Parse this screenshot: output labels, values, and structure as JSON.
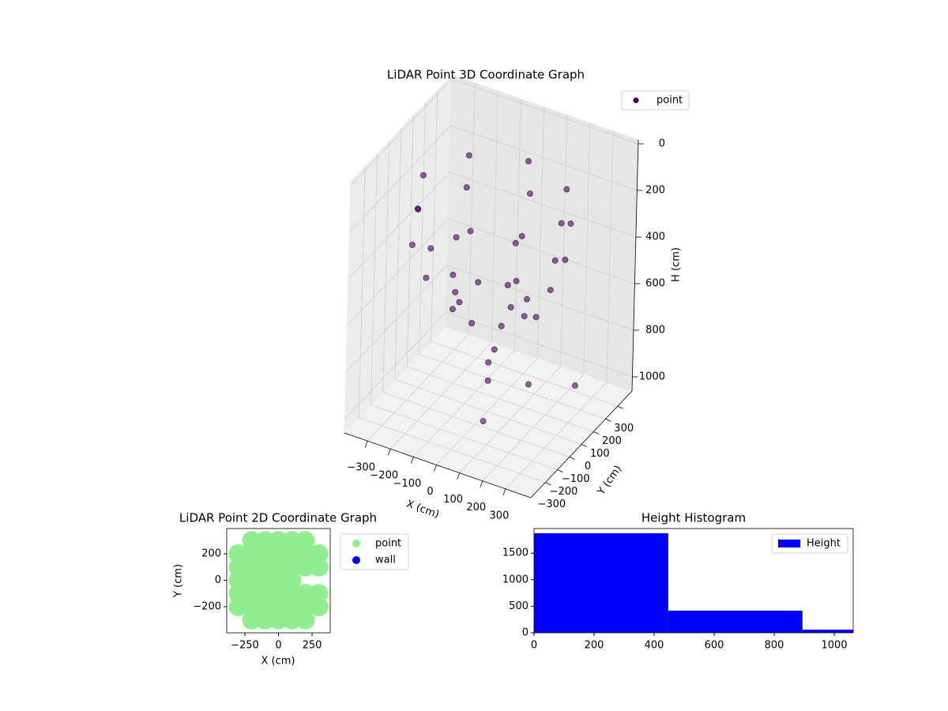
{
  "chart_data": [
    {
      "type": "scatter3d",
      "title": "LiDAR Point 3D Coordinate Graph",
      "xlabel": "X (cm)",
      "ylabel": "Y (cm)",
      "zlabel": "H (cm)",
      "xlim": [
        -400,
        410
      ],
      "ylim": [
        -420,
        420
      ],
      "zlim": [
        -17,
        1061
      ],
      "z_inverted": true,
      "xticks": [
        {
          "value": -300,
          "label": "−300"
        },
        {
          "value": -200,
          "label": "−200"
        },
        {
          "value": -100,
          "label": "−100"
        },
        0,
        100,
        200,
        300
      ],
      "yticks": [
        {
          "value": -300,
          "label": "−300"
        },
        {
          "value": -200,
          "label": "−200"
        },
        {
          "value": -100,
          "label": "−100"
        },
        0,
        100,
        200,
        300
      ],
      "zticks": [
        0,
        200,
        400,
        600,
        800,
        1000
      ],
      "grid": true,
      "legend": "upper right",
      "series": [
        {
          "name": "point",
          "color": "#440154",
          "x": [
            300,
            212,
            0,
            -212,
            -300,
            -212,
            0,
            212,
            320,
            226,
            0,
            -226,
            -320,
            -226,
            0,
            226,
            260,
            184,
            0,
            -184,
            -260,
            -184,
            0,
            184,
            150,
            106,
            0,
            -106,
            -150,
            -106,
            0,
            106,
            50,
            100,
            0,
            150,
            -50,
            60,
            250
          ],
          "y": [
            0,
            212,
            300,
            212,
            0,
            -212,
            -300,
            -212,
            0,
            226,
            320,
            226,
            0,
            -226,
            -320,
            -226,
            0,
            184,
            260,
            184,
            0,
            -184,
            -260,
            -184,
            0,
            106,
            150,
            106,
            0,
            -106,
            -150,
            -106,
            -50,
            200,
            0,
            50,
            100,
            -150,
            250
          ],
          "z": [
            150,
            150,
            150,
            150,
            150,
            150,
            150,
            150,
            300,
            300,
            300,
            300,
            300,
            300,
            300,
            300,
            450,
            450,
            450,
            450,
            450,
            450,
            450,
            450,
            600,
            600,
            600,
            600,
            600,
            600,
            600,
            600,
            750,
            730,
            850,
            920,
            1000,
            1000,
            1000
          ]
        }
      ]
    },
    {
      "type": "scatter",
      "title": "LiDAR Point 2D Coordinate Graph",
      "xlabel": "X (cm)",
      "ylabel": "Y (cm)",
      "xlim": [
        -385,
        385
      ],
      "ylim": [
        -397,
        391
      ],
      "xticks": [
        {
          "value": -250,
          "label": "−250"
        },
        0,
        250
      ],
      "yticks": [
        {
          "value": -200,
          "label": "−200"
        },
        0,
        200
      ],
      "legend": "outside right",
      "series": [
        {
          "name": "point",
          "color": "#90ee90",
          "x": [
            -200,
            -100,
            0,
            100,
            200,
            -300,
            -200,
            -100,
            0,
            100,
            200,
            300,
            -300,
            -200,
            -100,
            0,
            100,
            200,
            300,
            -300,
            -200,
            -100,
            0,
            100,
            -300,
            -200,
            -100,
            0,
            100,
            200,
            300,
            -300,
            -200,
            -100,
            0,
            100,
            200,
            300,
            -200,
            -100,
            0,
            100,
            200
          ],
          "y": [
            300,
            300,
            300,
            300,
            300,
            200,
            200,
            200,
            200,
            200,
            200,
            200,
            100,
            100,
            100,
            100,
            100,
            100,
            100,
            0,
            0,
            0,
            0,
            0,
            -100,
            -100,
            -100,
            -100,
            -100,
            -100,
            -100,
            -200,
            -200,
            -200,
            -200,
            -200,
            -200,
            -200,
            -300,
            -300,
            -300,
            -300,
            -300
          ]
        },
        {
          "name": "wall",
          "color": "#0000ff",
          "x": [],
          "y": []
        }
      ]
    },
    {
      "type": "histogram",
      "title": "Height Histogram",
      "bins": [
        0,
        447,
        894,
        1341
      ],
      "xlim": [
        0,
        1063
      ],
      "ylim": [
        0,
        1964
      ],
      "xticks": [
        0,
        200,
        400,
        600,
        800,
        1000
      ],
      "yticks": [
        0,
        500,
        1000,
        1500
      ],
      "legend": "upper right",
      "series": [
        {
          "name": "Height",
          "color": "#0000ff",
          "values": [
            1875,
            417,
            60
          ]
        }
      ]
    }
  ]
}
